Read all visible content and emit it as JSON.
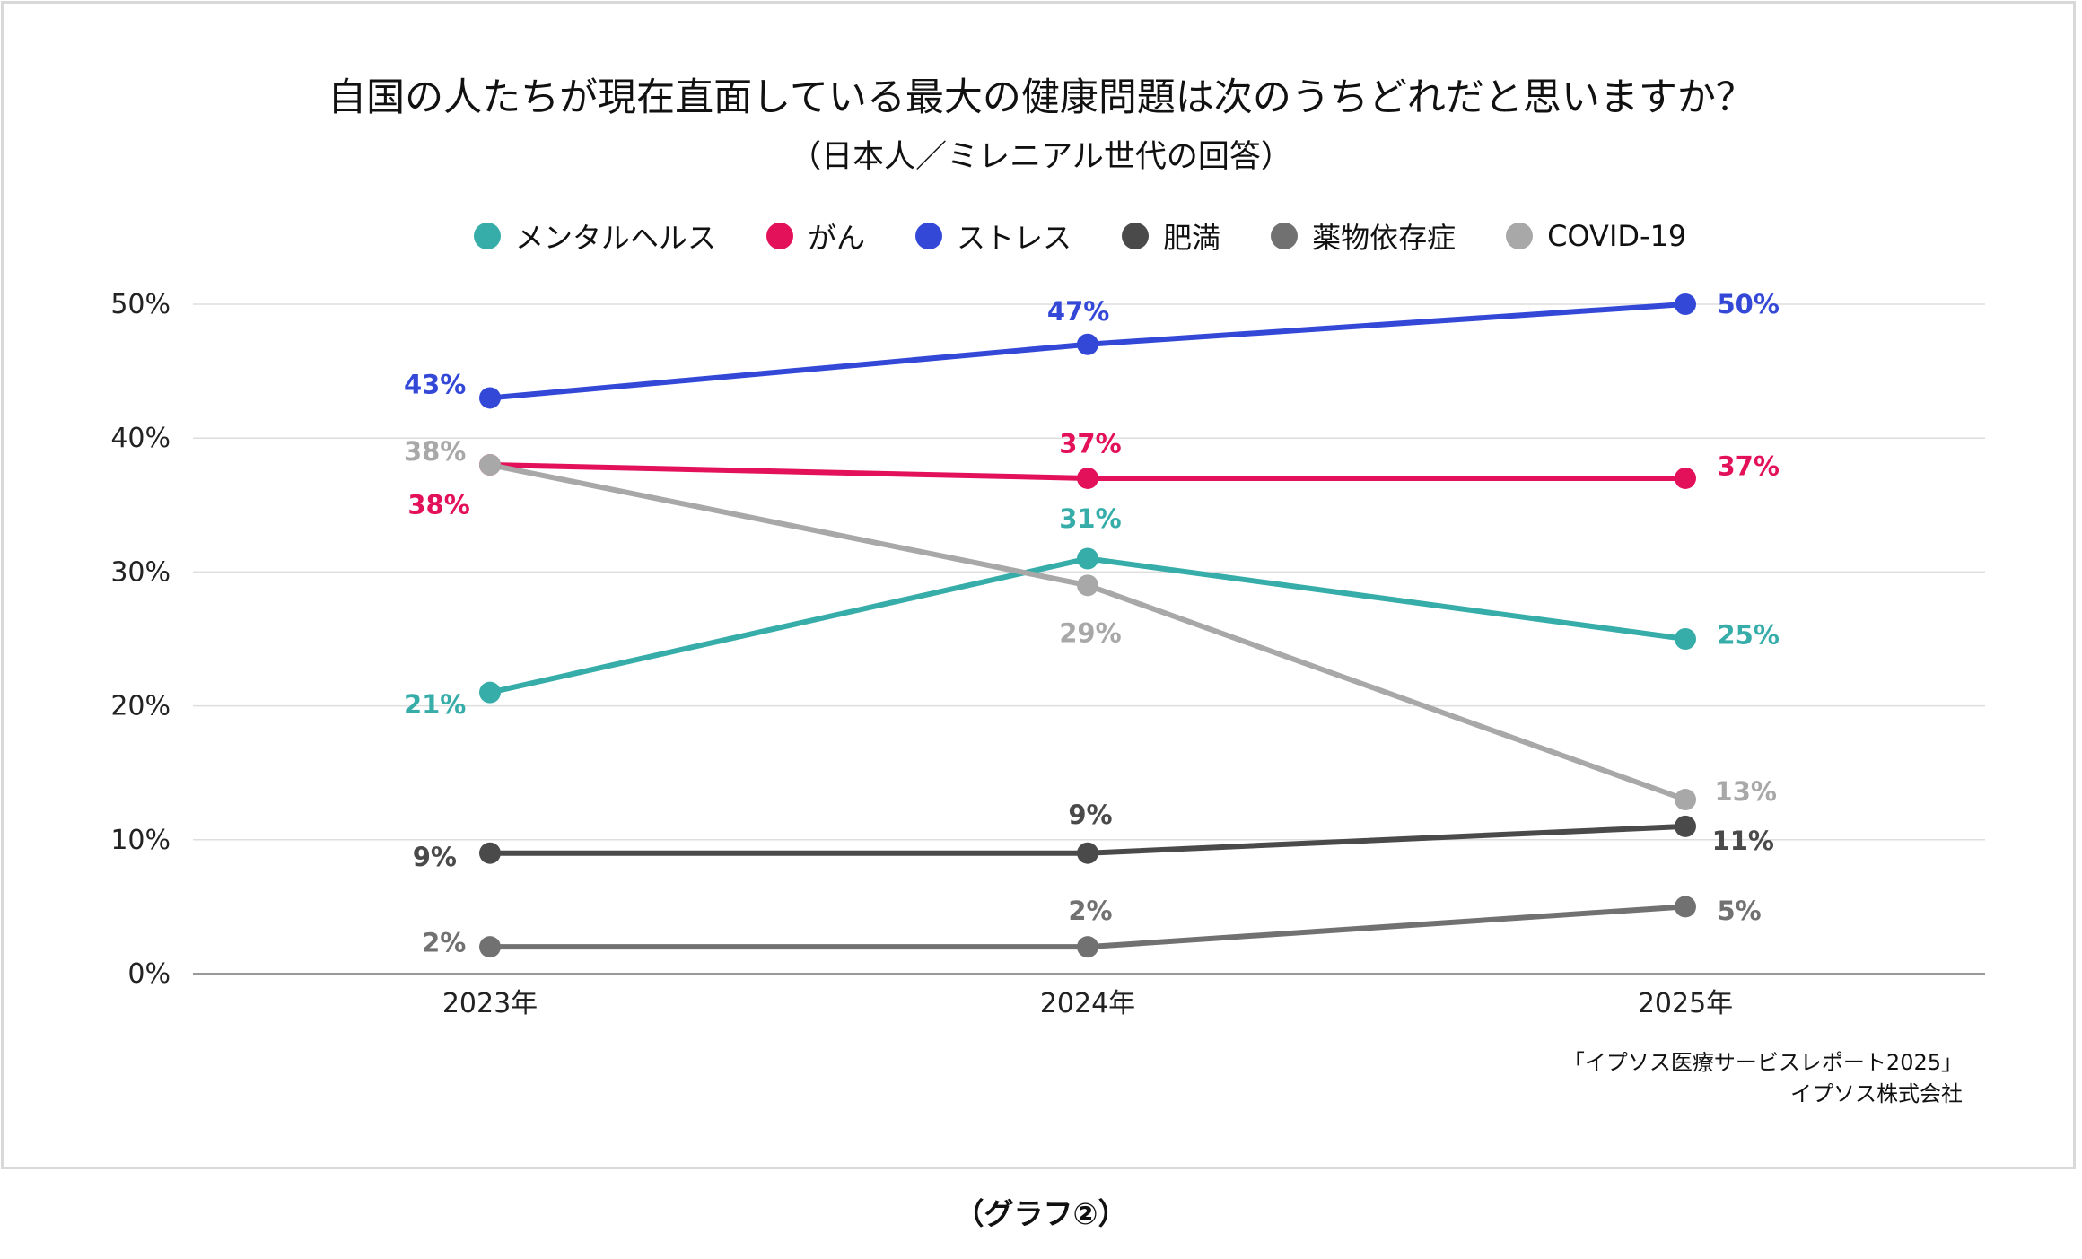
{
  "chart_data": {
    "type": "line",
    "title": "自国の人たちが現在直面している最大の健康問題は次のうちどれだと思いますか？",
    "subtitle": "（日本人／ミレニアル世代の回答）",
    "categories": [
      "2023年",
      "2024年",
      "2025年"
    ],
    "ylim": [
      0,
      50
    ],
    "yticks": [
      "0%",
      "10%",
      "20%",
      "30%",
      "40%",
      "50%"
    ],
    "grid": true,
    "legend_position": "top",
    "series": [
      {
        "name": "メンタルヘルス",
        "color": "#36ada9",
        "values": [
          21,
          31,
          25
        ],
        "labels": [
          "21%",
          "31%",
          "25%"
        ]
      },
      {
        "name": "がん",
        "color": "#e3105a",
        "values": [
          38,
          37,
          37
        ],
        "labels": [
          "38%",
          "37%",
          "37%"
        ]
      },
      {
        "name": "ストレス",
        "color": "#3448d8",
        "values": [
          43,
          47,
          50
        ],
        "labels": [
          "43%",
          "47%",
          "50%"
        ]
      },
      {
        "name": "肥満",
        "color": "#4a4a4a",
        "values": [
          9,
          9,
          11
        ],
        "labels": [
          "9%",
          "9%",
          "11%"
        ]
      },
      {
        "name": "薬物依存症",
        "color": "#717171",
        "values": [
          2,
          2,
          5
        ],
        "labels": [
          "2%",
          "2%",
          "5%"
        ]
      },
      {
        "name": "COVID-19",
        "color": "#a8a8a8",
        "values": [
          38,
          29,
          13
        ],
        "labels": [
          "38%",
          "29%",
          "13%"
        ]
      }
    ]
  },
  "source": {
    "line1": "「イプソス医療サービスレポート2025」",
    "line2": "イプソス株式会社"
  },
  "caption": "（グラフ②）"
}
